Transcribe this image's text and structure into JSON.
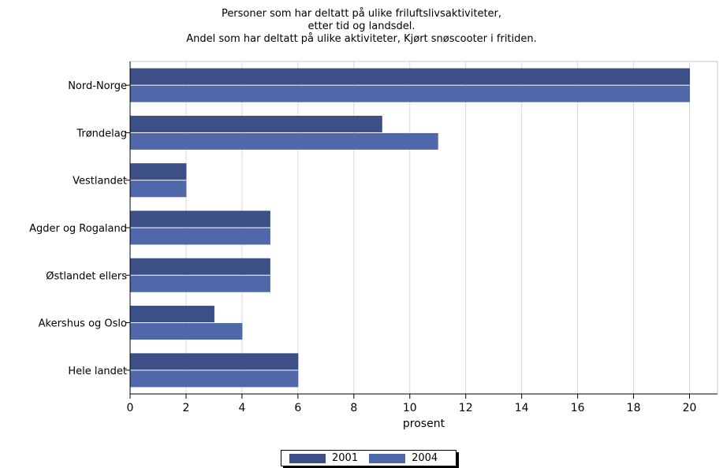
{
  "chart_data": {
    "type": "bar",
    "orientation": "horizontal",
    "title": "Personer som har deltatt på ulike friluftslivsaktiviteter,",
    "subtitle": "etter tid og landsdel.",
    "subtitle2": "Andel som har deltatt på ulike aktiviteter, Kjørt snøscooter i fritiden.",
    "xlabel": "prosent",
    "ylabel": "",
    "xlim": [
      0,
      21
    ],
    "xticks": [
      0,
      2,
      4,
      6,
      8,
      10,
      12,
      14,
      16,
      18,
      20
    ],
    "grid": true,
    "legend_position": "bottom",
    "categories": [
      "Nord-Norge",
      "Trøndelag",
      "Vestlandet",
      "Agder og Rogaland",
      "Østlandet ellers",
      "Akershus og Oslo",
      "Hele landet"
    ],
    "series": [
      {
        "name": "2001",
        "color": "#3d4f87",
        "values": [
          20,
          9,
          2,
          5,
          5,
          3,
          6
        ]
      },
      {
        "name": "2004",
        "color": "#5068aa",
        "values": [
          20,
          11,
          2,
          5,
          5,
          4,
          6
        ]
      }
    ]
  }
}
